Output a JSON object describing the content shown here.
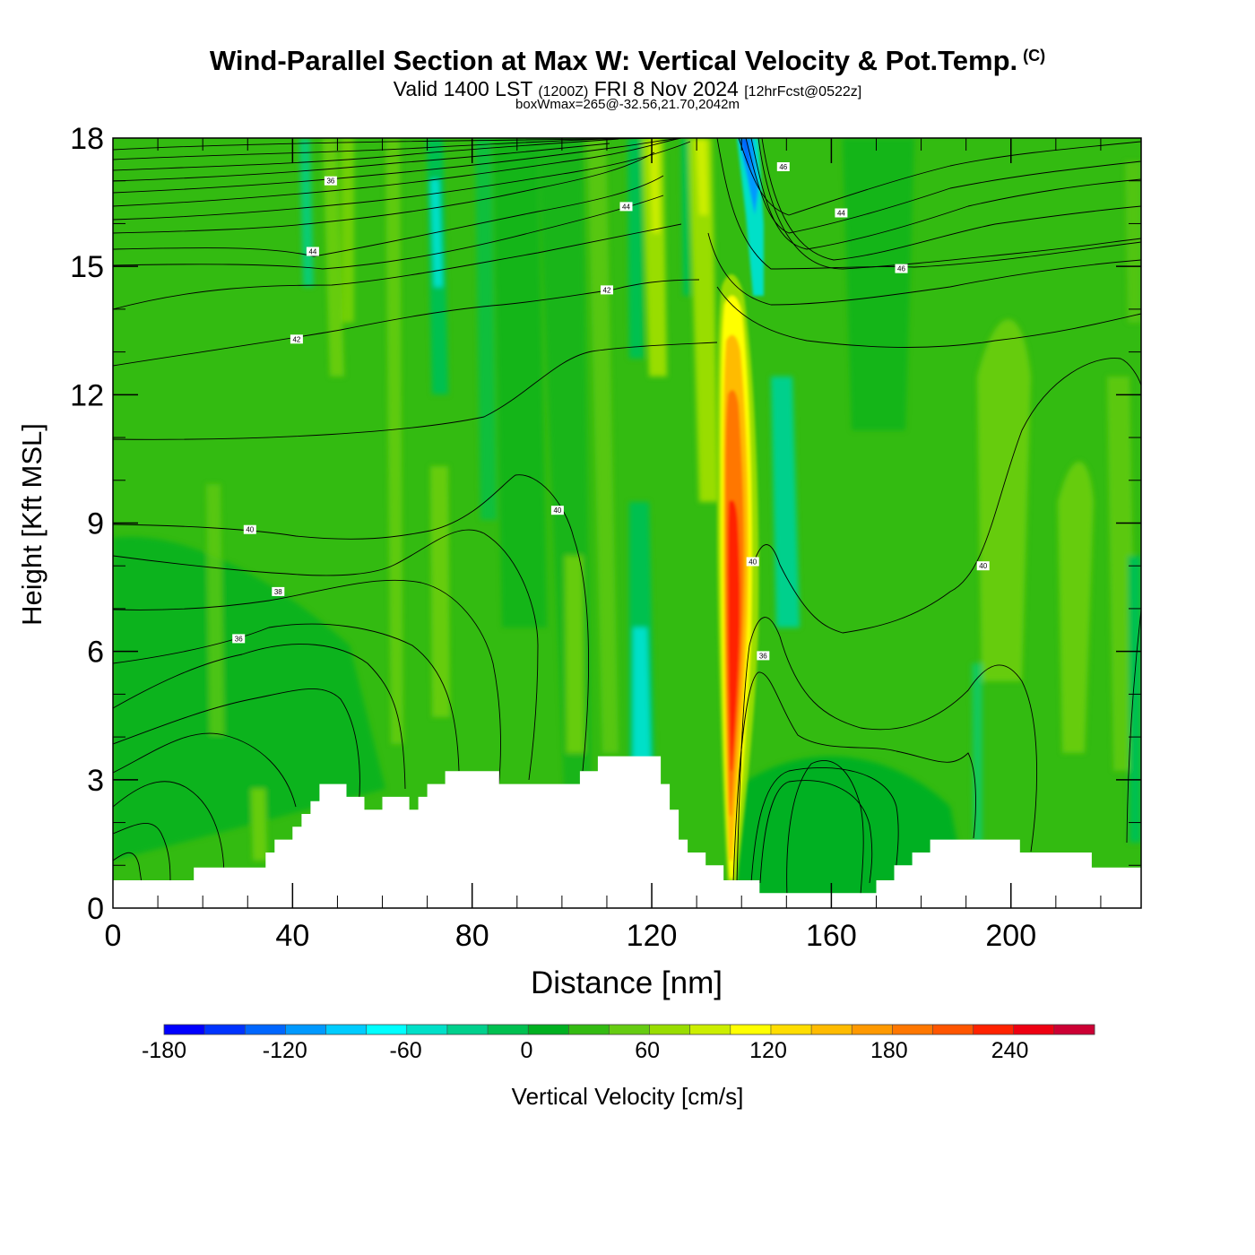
{
  "title": {
    "main": "Wind-Parallel Section at Max W: Vertical Velocity & Pot.Temp.",
    "copyright_mark": "(C)",
    "valid_prefix": "Valid 1400 LST",
    "valid_utc": "(1200Z)",
    "valid_date": "FRI 8 Nov 2024",
    "forecast": "[12hrFcst@0522z]",
    "box_info": "boxWmax=265@-32.56,21.70,2042m"
  },
  "chart_data": {
    "type": "heatmap",
    "xlabel": "Distance [nm]",
    "ylabel": "Height [Kft MSL]",
    "xlim": [
      0,
      229
    ],
    "ylim": [
      0,
      18
    ],
    "x_ticks": [
      0,
      40,
      80,
      120,
      160,
      200
    ],
    "y_ticks": [
      0,
      3,
      6,
      9,
      12,
      15,
      18
    ],
    "colorbar": {
      "label": "Vertical Velocity [cm/s]",
      "tick_labels": [
        -180,
        -120,
        -60,
        0,
        60,
        120,
        180,
        240
      ],
      "bounds": [
        -180,
        282
      ],
      "colors": [
        "#0000ff",
        "#0033ff",
        "#0066ff",
        "#0099ff",
        "#00ccff",
        "#00ffff",
        "#00e0c8",
        "#00d08c",
        "#00c050",
        "#00b020",
        "#33bb11",
        "#66cc11",
        "#99dd00",
        "#ccee00",
        "#ffff00",
        "#ffdd00",
        "#ffbb00",
        "#ff9900",
        "#ff7700",
        "#ff5500",
        "#ff2200",
        "#ee0011",
        "#cc0033"
      ]
    },
    "terrain": [
      [
        0,
        0.65
      ],
      [
        18,
        0.65
      ],
      [
        18,
        0.95
      ],
      [
        34,
        0.95
      ],
      [
        34,
        1.3
      ],
      [
        36,
        1.3
      ],
      [
        36,
        1.6
      ],
      [
        40,
        1.6
      ],
      [
        40,
        1.9
      ],
      [
        42,
        1.9
      ],
      [
        42,
        2.2
      ],
      [
        44,
        2.2
      ],
      [
        44,
        2.5
      ],
      [
        46,
        2.5
      ],
      [
        46,
        2.9
      ],
      [
        52,
        2.9
      ],
      [
        52,
        2.6
      ],
      [
        56,
        2.6
      ],
      [
        56,
        2.3
      ],
      [
        60,
        2.3
      ],
      [
        60,
        2.6
      ],
      [
        66,
        2.6
      ],
      [
        66,
        2.3
      ],
      [
        68,
        2.3
      ],
      [
        68,
        2.6
      ],
      [
        70,
        2.6
      ],
      [
        70,
        2.9
      ],
      [
        74,
        2.9
      ],
      [
        74,
        3.2
      ],
      [
        86,
        3.2
      ],
      [
        86,
        2.9
      ],
      [
        104,
        2.9
      ],
      [
        104,
        3.2
      ],
      [
        108,
        3.2
      ],
      [
        108,
        3.55
      ],
      [
        122,
        3.55
      ],
      [
        122,
        2.9
      ],
      [
        124,
        2.9
      ],
      [
        124,
        2.3
      ],
      [
        126,
        2.3
      ],
      [
        126,
        1.6
      ],
      [
        128,
        1.6
      ],
      [
        128,
        1.3
      ],
      [
        132,
        1.3
      ],
      [
        132,
        1.0
      ],
      [
        136,
        1.0
      ],
      [
        136,
        0.65
      ],
      [
        144,
        0.65
      ],
      [
        144,
        0.35
      ],
      [
        170,
        0.35
      ],
      [
        170,
        0.65
      ],
      [
        174,
        0.65
      ],
      [
        174,
        1.0
      ],
      [
        178,
        1.0
      ],
      [
        178,
        1.3
      ],
      [
        182,
        1.3
      ],
      [
        182,
        1.6
      ],
      [
        202,
        1.6
      ],
      [
        202,
        1.3
      ],
      [
        218,
        1.3
      ],
      [
        218,
        0.95
      ],
      [
        229,
        0.95
      ],
      [
        229,
        0
      ]
    ],
    "theta_contour_labels": [
      {
        "text": "36",
        "x": 48.5,
        "y": 17.0
      },
      {
        "text": "44",
        "x": 44.5,
        "y": 15.35
      },
      {
        "text": "44",
        "x": 114.3,
        "y": 16.4
      },
      {
        "text": "46",
        "x": 149.3,
        "y": 17.33
      },
      {
        "text": "44",
        "x": 162.2,
        "y": 16.25
      },
      {
        "text": "46",
        "x": 175.6,
        "y": 14.95
      },
      {
        "text": "42",
        "x": 110.0,
        "y": 14.45
      },
      {
        "text": "42",
        "x": 40.9,
        "y": 13.3
      },
      {
        "text": "40",
        "x": 30.5,
        "y": 8.85
      },
      {
        "text": "40",
        "x": 99.0,
        "y": 9.3
      },
      {
        "text": "40",
        "x": 142.5,
        "y": 8.1
      },
      {
        "text": "40",
        "x": 193.8,
        "y": 8.0
      },
      {
        "text": "38",
        "x": 36.8,
        "y": 7.4
      },
      {
        "text": "36",
        "x": 28.0,
        "y": 6.3
      },
      {
        "text": "36",
        "x": 144.8,
        "y": 5.9
      }
    ]
  }
}
